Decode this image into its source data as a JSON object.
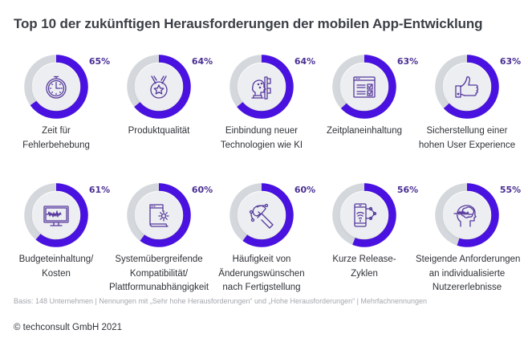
{
  "chart_data": {
    "type": "pie",
    "subtype": "donut-grid",
    "title": "Top 10 der zukünftigen Herausforderungen der mobilen App-Entwicklung",
    "unit": "%",
    "max": 100,
    "items": [
      {
        "label": "Zeit für Fehlerbehebung",
        "lines": [
          "Zeit für",
          "Fehlerbehebung"
        ],
        "value": 65,
        "value_label": "65%",
        "icon": "stopwatch-icon"
      },
      {
        "label": "Produktqualität",
        "lines": [
          "Produktqualität"
        ],
        "value": 64,
        "value_label": "64%",
        "icon": "medal-icon"
      },
      {
        "label": "Einbindung neuer Technologien wie KI",
        "lines": [
          "Einbindung neuer",
          "Technologien wie KI"
        ],
        "value": 64,
        "value_label": "64%",
        "icon": "ai-head-icon"
      },
      {
        "label": "Zeitplaneinhaltung",
        "lines": [
          "Zeitplaneinhaltung"
        ],
        "value": 63,
        "value_label": "63%",
        "icon": "checklist-window-icon"
      },
      {
        "label": "Sicherstellung einer hohen User Experience",
        "lines": [
          "Sicherstellung einer",
          "hohen User Experience"
        ],
        "value": 63,
        "value_label": "63%",
        "icon": "thumbs-up-icon"
      },
      {
        "label": "Budgeteinhaltung/ Kosten",
        "lines": [
          "Budgeteinhaltung/",
          "Kosten"
        ],
        "value": 61,
        "value_label": "61%",
        "icon": "monitor-chart-icon"
      },
      {
        "label": "Systemübergreifende Kompatibilität/ Plattformunabhängigkeit",
        "lines": [
          "Systemübergreifende",
          "Kompatibilität/",
          "Plattformunabhängigkeit"
        ],
        "value": 60,
        "value_label": "60%",
        "icon": "document-gear-icon"
      },
      {
        "label": "Häufigkeit von Änderungswünschen nach Fertigstellung",
        "lines": [
          "Häufigkeit von",
          "Änderungswünschen",
          "nach Fertigstellung"
        ],
        "value": 60,
        "value_label": "60%",
        "icon": "pen-tool-icon"
      },
      {
        "label": "Kurze Release-Zyklen",
        "lines": [
          "Kurze Release-",
          "Zyklen"
        ],
        "value": 56,
        "value_label": "56%",
        "icon": "phone-network-icon"
      },
      {
        "label": "Steigende Anforderungen an individualisierte Nutzererlebnisse",
        "lines": [
          "Steigende Anforderungen",
          "an individualisierte",
          "Nutzererlebnisse"
        ],
        "value": 55,
        "value_label": "55%",
        "icon": "head-brain-icon"
      }
    ],
    "colors": {
      "value_arc": "#4a12e0",
      "remainder_arc": "#d4d8dc",
      "inner_disk": "#eceef2",
      "value_text": "#4a2f93",
      "icon_stroke": "#56399c"
    },
    "legend": "none"
  },
  "footer": {
    "note": "Basis: 148 Unternehmen | Nennungen mit „Sehr hohe Herausforderungen“ und „Hohe Herausforderungen“ | Mehrfachnennungen",
    "copyright": "© techconsult GmbH 2021"
  }
}
